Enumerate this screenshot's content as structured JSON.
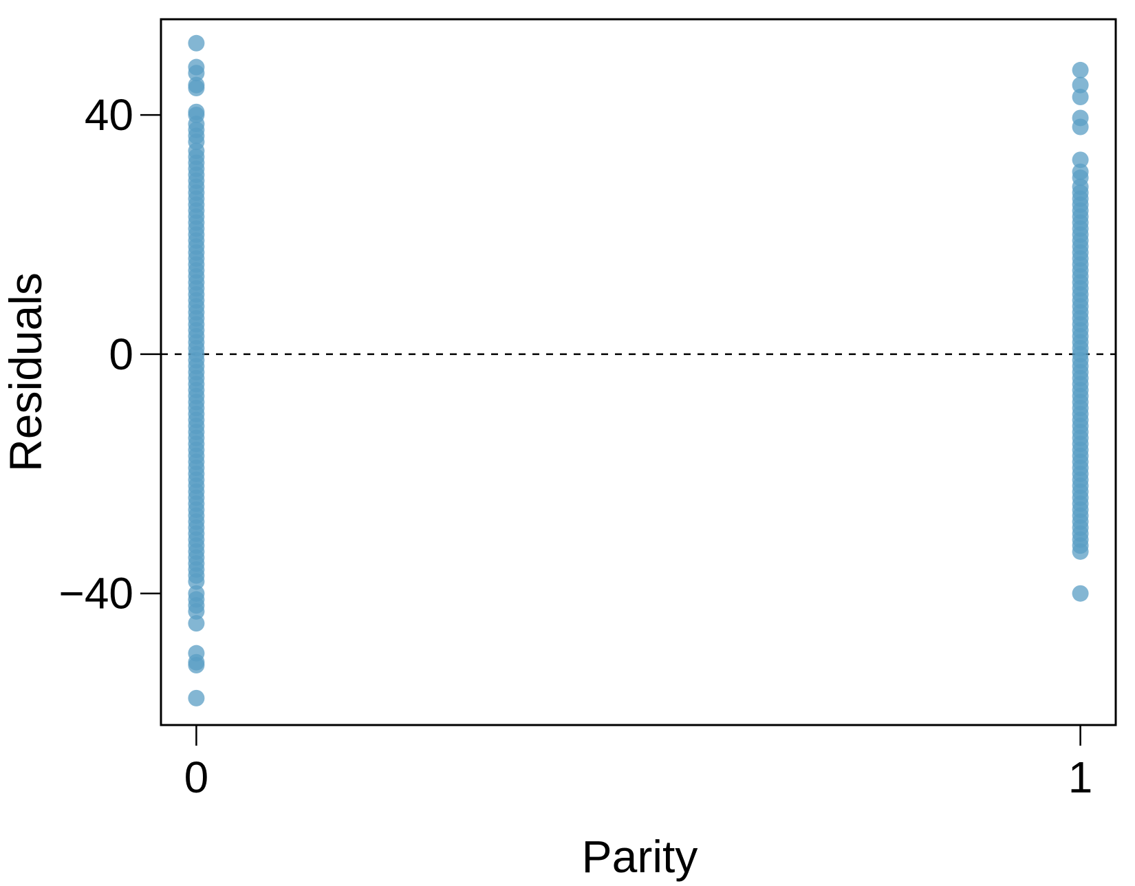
{
  "chart_data": {
    "type": "scatter",
    "title": "",
    "xlabel": "Parity",
    "ylabel": "Residuals",
    "x_ticks": [
      "0",
      "1"
    ],
    "y_ticks": [
      {
        "value": 40,
        "label": "40"
      },
      {
        "value": 0,
        "label": "0"
      },
      {
        "value": -40,
        "label": "−40"
      }
    ],
    "xlim": [
      -0.04,
      1.04
    ],
    "ylim": [
      -62,
      56
    ],
    "grid": false,
    "legend": "none",
    "reference_line": {
      "y": 0,
      "style": "dashed",
      "color": "#000000"
    },
    "point_color": "#5a9ec4",
    "series": [
      {
        "x": 0,
        "y": [
          52,
          48,
          47,
          45,
          44.5,
          40.5,
          40,
          38.5,
          37.5,
          36.5,
          35.5,
          34,
          33,
          32,
          31,
          30,
          29,
          28,
          27,
          26,
          25,
          24,
          23,
          22,
          21,
          20,
          19,
          18,
          17,
          16,
          15,
          14,
          13,
          12,
          11,
          10,
          9,
          8,
          7,
          6,
          5,
          4,
          3,
          2,
          1,
          0,
          -1,
          -2,
          -3,
          -4,
          -5,
          -6,
          -7,
          -8,
          -9,
          -10,
          -11,
          -12,
          -13,
          -14,
          -15,
          -16,
          -17,
          -18,
          -19,
          -20,
          -21,
          -22,
          -23,
          -24,
          -25,
          -26,
          -27,
          -28,
          -29,
          -30,
          -31,
          -32,
          -33,
          -34,
          -35,
          -36,
          -37,
          -38,
          -40,
          -41,
          -42,
          -43,
          -45,
          -50,
          -51.5,
          -52,
          -57.5
        ]
      },
      {
        "x": 1,
        "y": [
          47.5,
          45,
          43,
          39.5,
          38,
          32.5,
          30.5,
          29.5,
          28,
          27,
          26,
          25,
          24,
          23,
          22,
          21,
          20,
          19,
          18,
          17,
          16,
          15,
          14,
          13,
          12,
          11,
          10,
          9,
          8,
          7,
          6,
          5,
          4,
          3,
          2,
          1,
          0,
          -1,
          -2,
          -3,
          -4,
          -5,
          -6,
          -7,
          -8,
          -9,
          -10,
          -11,
          -12,
          -13,
          -14,
          -15,
          -16,
          -17,
          -18,
          -19,
          -20,
          -21,
          -22,
          -23,
          -24,
          -25,
          -26,
          -27,
          -28,
          -29,
          -30,
          -31,
          -32,
          -33,
          -40
        ]
      }
    ]
  }
}
